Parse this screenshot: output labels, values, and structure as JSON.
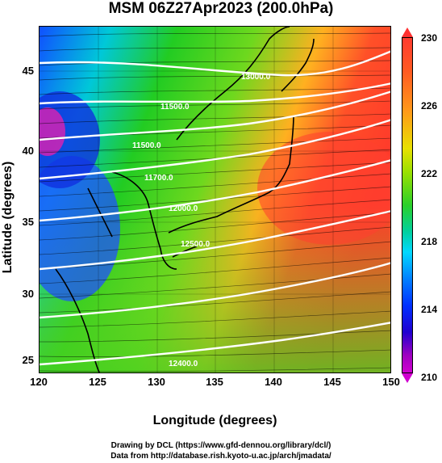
{
  "title": "MSM 06Z27Apr2023 (200.0hPa)",
  "x_axis": {
    "label": "Longitude (degrees)",
    "ticks": [
      "120",
      "125",
      "130",
      "135",
      "140",
      "145",
      "150"
    ]
  },
  "y_axis": {
    "label": "Latitude  (degrees)",
    "ticks": [
      "45",
      "40",
      "35",
      "30",
      "25"
    ]
  },
  "colorbar": {
    "labels": [
      "230",
      "226",
      "222",
      "218",
      "214",
      "210"
    ],
    "unit_range": [
      210,
      230
    ]
  },
  "contour_labels": [
    "11500.0",
    "12000.0",
    "12500.0",
    "13000.0",
    "11500.0",
    "12400.0",
    "11700.0"
  ],
  "footer": {
    "line1": "Drawing by DCL (https://www.gfd-dennou.org/library/dcl/)",
    "line2": "Data from http://database.rish.kyoto-u.ac.jp/arch/jmadata/"
  },
  "colors": {
    "warm": "#ff4a2a",
    "mid": "#22cc22",
    "cold": "#1040ff",
    "contour": "#ffffff",
    "coast": "#000000"
  }
}
